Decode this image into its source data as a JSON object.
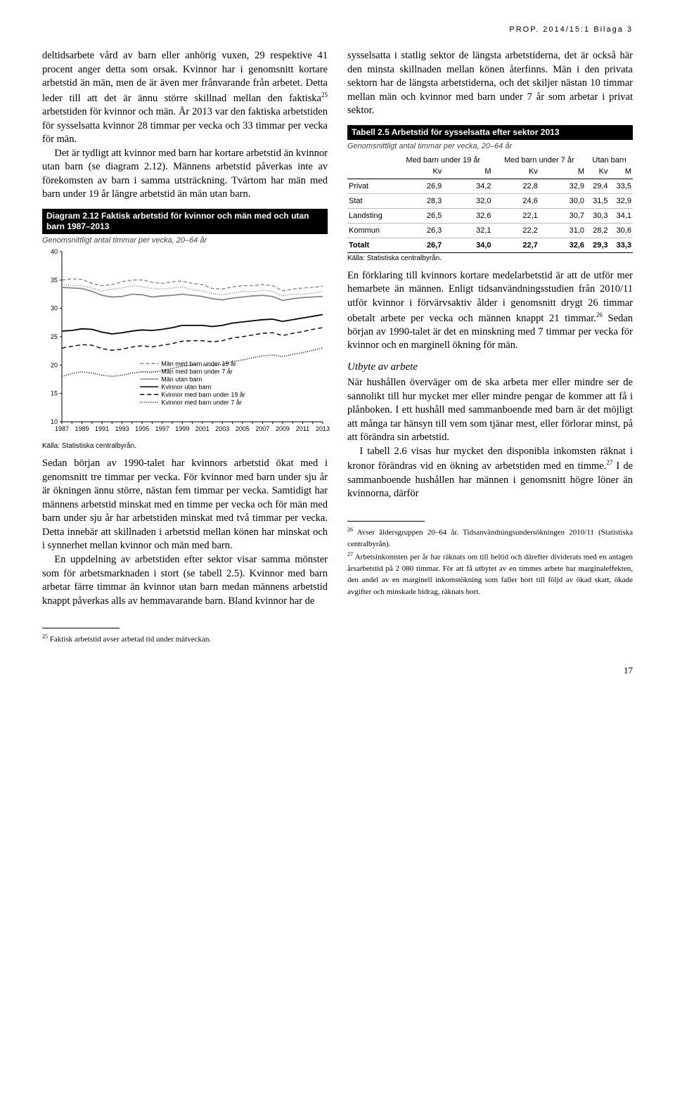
{
  "header": "PROP. 2014/15:1 Bilaga 3",
  "page_number": "17",
  "left": {
    "p1": "deltidsarbete vård av barn eller anhörig vuxen, 29 respektive 41 procent anger detta som orsak. Kvinnor har i genomsnitt kortare arbetstid än män, men de är även mer frånvarande från arbetet. Detta leder till att det är ännu större skillnad mellan den faktiska",
    "p1_sup": "25",
    "p1_after": " arbetstiden för kvinnor och män. År 2013 var den faktiska arbetstiden för sysselsatta kvinnor 28 timmar per vecka och 33 timmar per vecka för män.",
    "p2": "Det är tydligt att kvinnor med barn har kortare arbetstid än kvinnor utan barn (se diagram 2.12). Männens arbetstid påverkas inte av förekomsten av barn i samma utsträckning. Tvärtom har män med barn under 19 år längre arbetstid än män utan barn.",
    "diagram_title": "Diagram 2.12 Faktisk arbetstid för kvinnor och män med och utan barn 1987–2013",
    "diagram_sub": "Genomsnittligt antal timmar per vecka, 20–64 år",
    "chart_source": "Källa: Statistiska centralbyrån.",
    "p3": "Sedan början av 1990-talet har kvinnors arbetstid ökat med i genomsnitt tre timmar per vecka. För kvinnor med barn under sju år är ökningen ännu större, nästan fem timmar per vecka. Samtidigt har männens arbetstid minskat med en timme per vecka och för män med barn under sju år har arbetstiden minskat med två timmar per vecka. Detta innebär att skillnaden i arbetstid mellan könen har minskat och i synnerhet mellan kvinnor och män med barn.",
    "p4": "En uppdelning av arbetstiden efter sektor visar samma mönster som för arbetsmarknaden i stort (se tabell 2.5). Kvinnor med barn arbetar färre timmar än kvinnor utan barn medan männens arbetstid knappt påverkas alls av hemmavarande barn. Bland kvinnor har de",
    "footnote25": "Faktisk arbetstid avser arbetad tid under mätveckan."
  },
  "right": {
    "p1": "sysselsatta i statlig sektor de längsta arbetstiderna, det är också här den minsta skillnaden mellan könen återfinns. Män i den privata sektorn har de längsta arbetstiderna, och det skiljer nästan 10 timmar mellan män och kvinnor med barn under 7 år som arbetar i privat sektor.",
    "table_title": "Tabell 2.5 Arbetstid för sysselsatta efter sektor 2013",
    "table_sub": "Genomsnittligt antal timmar per vecka, 20–64 år",
    "table_source": "Källa: Statistiska centralbyrån.",
    "p2a": "En förklaring till kvinnors kortare medelarbetstid är att de utför mer hemarbete än männen. Enligt tidsanvändningsstudien från 2010/11 utför kvinnor i förvärvsaktiv ålder i genomsnitt drygt 26 timmar obetalt arbete per vecka och männen knappt 21 timmar.",
    "p2_sup": "26",
    "p2b": " Sedan början av 1990-talet är det en minskning med 7 timmar per vecka för kvinnor och en marginell ökning för män.",
    "h_utbyte": "Utbyte av arbete",
    "p3": "När hushållen överväger om de ska arbeta mer eller mindre ser de sannolikt till hur mycket mer eller mindre pengar de kommer att få i plånboken. I ett hushåll med sammanboende med barn är det möjligt att många tar hänsyn till vem som tjänar mest, eller förlorar minst, på att förändra sin arbetstid.",
    "p4a": "I tabell 2.6 visas hur mycket den disponibla inkomsten räknat i kronor förändras vid en ökning av arbetstiden med en timme.",
    "p4_sup": "27",
    "p4b": " I de sammanboende hushållen har männen i genomsnitt högre löner än kvinnorna, därför",
    "footnote26": "Avser åldersgruppen 20–64 år. Tidsanvändningsundersökningen 2010/11 (Statistiska centralbyrån).",
    "footnote27": "Arbetsinkomsten per år har räknats om till heltid och därefter dividerats med en antagen årsarbetstid på 2 080 timmar. För att få utbytet av en timmes arbete har marginaleffekten, den andel av en marginell inkomstökning som faller bort till följd av ökad skatt, ökade avgifter och minskade bidrag, räknats bort."
  },
  "table": {
    "group_headers": [
      "Med barn under 19 år",
      "Med barn under 7 år",
      "Utan barn"
    ],
    "sub_headers": [
      "Kv",
      "M",
      "Kv",
      "M",
      "Kv",
      "M"
    ],
    "rows": [
      {
        "label": "Privat",
        "v": [
          "26,9",
          "34,2",
          "22,8",
          "32,9",
          "29,4",
          "33,5"
        ]
      },
      {
        "label": "Stat",
        "v": [
          "28,3",
          "32,0",
          "24,6",
          "30,0",
          "31,5",
          "32,9"
        ]
      },
      {
        "label": "Landsting",
        "v": [
          "26,5",
          "32,6",
          "22,1",
          "30,7",
          "30,3",
          "34,1"
        ]
      },
      {
        "label": "Kommun",
        "v": [
          "26,3",
          "32,1",
          "22,2",
          "31,0",
          "28,2",
          "30,6"
        ]
      }
    ],
    "total": {
      "label": "Totalt",
      "v": [
        "26,7",
        "34,0",
        "22,7",
        "32,6",
        "29,3",
        "33,3"
      ]
    }
  },
  "chart": {
    "ylim": [
      10,
      40
    ],
    "yticks": [
      10,
      15,
      20,
      25,
      30,
      35,
      40
    ],
    "xticks": [
      1987,
      1989,
      1991,
      1993,
      1995,
      1997,
      1999,
      2001,
      2003,
      2005,
      2007,
      2009,
      2011,
      2013
    ],
    "grid_color": "#cccccc",
    "series": [
      {
        "name": "Män med barn under 19 år",
        "color": "#888888",
        "dash": "5,3",
        "width": 1.4,
        "y": [
          35.0,
          35.2,
          35.1,
          34.4,
          34.0,
          34.2,
          34.7,
          35.0,
          35.0,
          34.6,
          34.4,
          34.7,
          34.8,
          34.4,
          34.2,
          33.5,
          33.4,
          33.8,
          34.0,
          34.0,
          34.2,
          34.0,
          33.1,
          33.4,
          33.6,
          33.7,
          33.9
        ]
      },
      {
        "name": "Män med barn under 7 år",
        "color": "#888888",
        "dash": "1,2",
        "width": 1.6,
        "y": [
          34.3,
          34.0,
          34.0,
          33.6,
          33.0,
          33.4,
          33.6,
          34.0,
          33.8,
          33.5,
          33.4,
          33.6,
          33.8,
          33.3,
          33.1,
          32.6,
          32.4,
          32.7,
          33.0,
          32.9,
          33.2,
          33.0,
          32.2,
          32.5,
          32.5,
          32.7,
          33.0
        ]
      },
      {
        "name": "Män utan barn",
        "color": "#888888",
        "dash": "",
        "width": 1.8,
        "y": [
          33.7,
          33.6,
          33.5,
          33.0,
          32.3,
          32.0,
          32.1,
          32.5,
          32.4,
          32.0,
          32.2,
          32.3,
          32.5,
          32.3,
          32.1,
          31.7,
          31.5,
          31.8,
          32.0,
          32.2,
          32.3,
          32.1,
          31.4,
          31.7,
          31.9,
          32.0,
          32.1
        ]
      },
      {
        "name": "Kvinnor utan barn",
        "color": "#000000",
        "dash": "",
        "width": 1.8,
        "y": [
          26.0,
          26.1,
          26.4,
          26.3,
          25.8,
          25.5,
          25.7,
          26.0,
          26.2,
          26.1,
          26.3,
          26.6,
          27.0,
          27.0,
          27.0,
          26.8,
          27.0,
          27.4,
          27.6,
          27.8,
          28.0,
          28.1,
          27.7,
          28.0,
          28.3,
          28.6,
          28.9
        ]
      },
      {
        "name": "Kvinnor med barn under 19 år",
        "color": "#000000",
        "dash": "6,4",
        "width": 1.4,
        "y": [
          23.0,
          23.3,
          23.6,
          23.5,
          22.9,
          22.6,
          22.8,
          23.2,
          23.4,
          23.2,
          23.5,
          23.8,
          24.2,
          24.3,
          24.3,
          24.1,
          24.3,
          24.8,
          25.0,
          25.3,
          25.6,
          25.7,
          25.2,
          25.6,
          25.9,
          26.3,
          26.6
        ]
      },
      {
        "name": "Kvinnor med barn under 7 år",
        "color": "#000000",
        "dash": "1,2",
        "width": 1.6,
        "y": [
          18.0,
          18.5,
          18.8,
          18.6,
          18.2,
          18.0,
          18.2,
          18.6,
          18.8,
          18.7,
          19.0,
          19.4,
          19.8,
          20.0,
          20.0,
          19.9,
          20.1,
          20.6,
          20.9,
          21.3,
          21.6,
          21.8,
          21.5,
          21.9,
          22.2,
          22.6,
          23.0
        ]
      }
    ],
    "legend": [
      "Män med barn under 19 år",
      "Män med barn under 7 år",
      "Män utan barn",
      "Kvinnor utan barn",
      "Kvinnor med barn under 19 år",
      "Kvinnor med barn under 7 år"
    ]
  }
}
